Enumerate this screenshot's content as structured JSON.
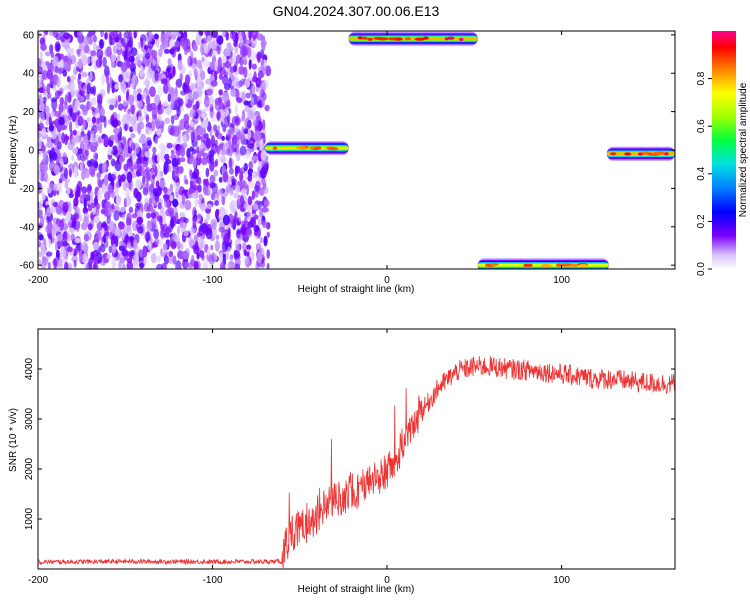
{
  "figure_title": "GN04.2024.307.00.06.E13",
  "colorbar": {
    "label": "Normalized spectral amplitude",
    "ticks": [
      "0.0",
      "0.2",
      "0.4",
      "0.6",
      "0.8"
    ],
    "range": [
      0,
      1
    ]
  },
  "chart_data": [
    {
      "type": "heatmap",
      "title": "",
      "xlabel": "Height of straight line (km)",
      "ylabel": "Frequency (Hz)",
      "xlim": [
        -200,
        165
      ],
      "ylim": [
        -62,
        62
      ],
      "xticks": [
        "-200",
        "-100",
        "0",
        "100"
      ],
      "yticks": [
        "-60",
        "-40",
        "-20",
        "0",
        "20",
        "40",
        "60"
      ],
      "noise_region_x": [
        -200,
        -68
      ],
      "bands": [
        {
          "x": [
            -70,
            -22
          ],
          "freq": 1,
          "peak": 0.95
        },
        {
          "x": [
            -22,
            52
          ],
          "freq": 58,
          "peak": 1.0
        },
        {
          "x": [
            52,
            127
          ],
          "freq": -60,
          "peak": 0.9
        },
        {
          "x": [
            126,
            165
          ],
          "freq": -2,
          "peak": 1.0
        }
      ]
    },
    {
      "type": "line",
      "title": "",
      "xlabel": "Height of straight line (km)",
      "ylabel": "SNR (10 * v/v)",
      "xlim": [
        -200,
        165
      ],
      "ylim": [
        0,
        4800
      ],
      "xticks": [
        "-200",
        "-100",
        "0",
        "100"
      ],
      "yticks": [
        "1000",
        "2000",
        "3000",
        "4000"
      ],
      "color": "#ee3333",
      "x": [
        -200,
        -150,
        -100,
        -60,
        -55,
        -40,
        -30,
        -20,
        -10,
        0,
        10,
        20,
        30,
        40,
        50,
        60,
        70,
        80,
        90,
        100,
        110,
        120,
        130,
        140,
        150,
        165
      ],
      "values": [
        140,
        150,
        145,
        150,
        700,
        1100,
        1400,
        1550,
        1750,
        1950,
        2500,
        3150,
        3650,
        3950,
        4050,
        4050,
        4000,
        3980,
        3950,
        3900,
        3850,
        3800,
        3800,
        3750,
        3720,
        3700
      ]
    }
  ]
}
